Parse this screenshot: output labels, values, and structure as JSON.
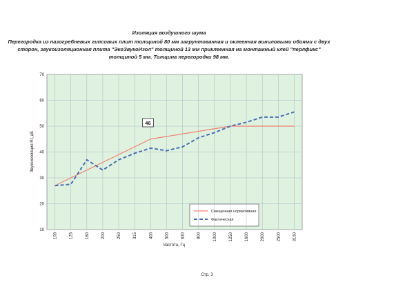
{
  "chart_data": {
    "type": "line",
    "title": "Изоляция воздушного шума",
    "subtitle": [
      "Перегородка из пазогребневых гипсовых плит толщиной 80 мм загрунтованная  и оклеенная виниловыми обоями с двух",
      "сторон,  звукоизоляционная плита \"ЭкоЗвукоИзол\" толщиной 13 мм приклеенная на монтажный клей \"перлфикс\"",
      "толщиной 5 мм. Толщина перегородки 98 мм."
    ],
    "x_label": "Частота, Гц",
    "y_label": "Звукоизоляция Rt, дБ",
    "categories": [
      "100",
      "125",
      "160",
      "200",
      "250",
      "315",
      "400",
      "500",
      "630",
      "800",
      "1000",
      "1250",
      "1600",
      "2000",
      "2500",
      "3150"
    ],
    "series": [
      {
        "name": "Смещенная нормативная",
        "color": "#f08070",
        "dash": false,
        "values": [
          27,
          30,
          33,
          36,
          39,
          42,
          45,
          46,
          47,
          48,
          49,
          50,
          50,
          50,
          50,
          50
        ]
      },
      {
        "name": "Фактическая",
        "color": "#4a6fb5",
        "dash": true,
        "values": [
          27,
          27.5,
          37,
          33,
          37,
          39.5,
          41.5,
          40.5,
          42,
          45.5,
          47.5,
          50,
          51.5,
          53.5,
          53.5,
          55.5
        ]
      }
    ],
    "ylim": [
      10,
      70
    ],
    "yticks": [
      10,
      20,
      30,
      40,
      50,
      60,
      70
    ],
    "grid": true,
    "annotation": "46",
    "footer": "Стр. 3"
  }
}
